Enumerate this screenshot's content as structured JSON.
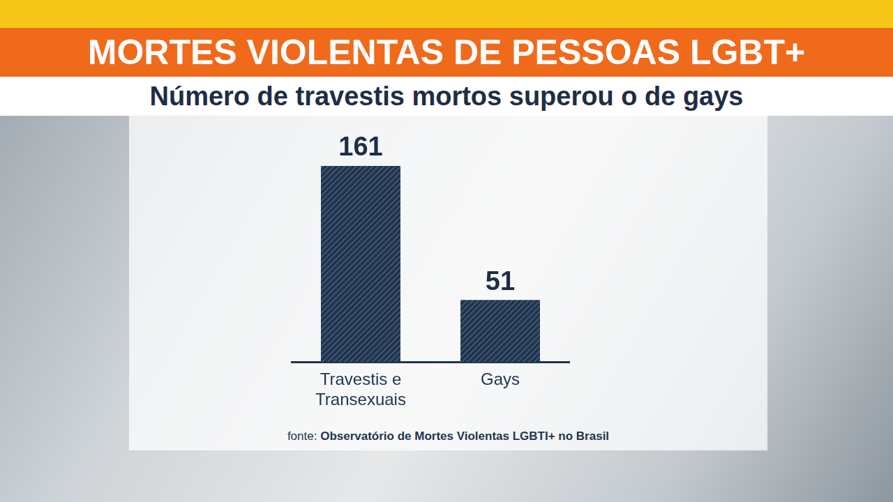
{
  "chart_data": {
    "type": "bar",
    "title": "MORTES VIOLENTAS DE PESSOAS LGBT+",
    "subtitle": "Número de travestis mortos superou o de gays",
    "categories": [
      "Travestis e Transexuais",
      "Gays"
    ],
    "values": [
      161,
      51
    ],
    "color": "#1e3450",
    "ylim": [
      0,
      161
    ],
    "grid": false,
    "data_labels": true,
    "tick_labels": "x",
    "source": "fonte: Observatório de Mortes Violentas LGBTI+ no Brasil"
  }
}
